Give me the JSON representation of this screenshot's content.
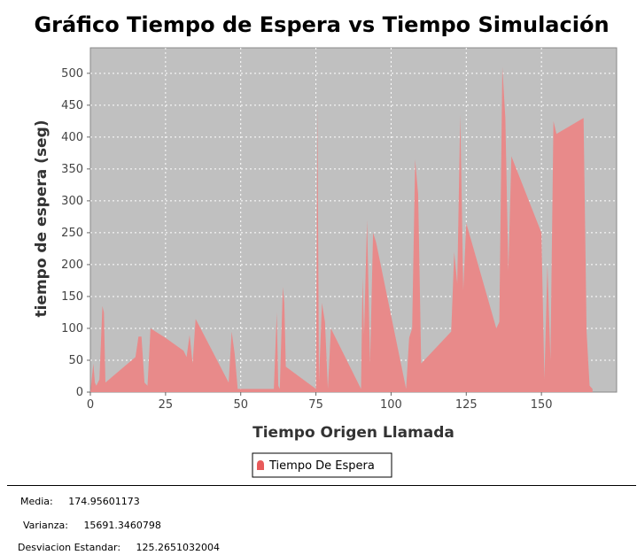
{
  "chart_data": {
    "type": "area",
    "title": "Gráfico Tiempo de Espera vs Tiempo Simulación",
    "xlabel": "Tiempo Origen Llamada",
    "ylabel": "tiempo de espera (seg)",
    "xlim": [
      0,
      175
    ],
    "ylim": [
      0,
      540
    ],
    "xticks": [
      0,
      25,
      50,
      75,
      100,
      125,
      150
    ],
    "yticks": [
      0,
      50,
      100,
      150,
      200,
      250,
      300,
      350,
      400,
      450,
      500
    ],
    "grid": true,
    "legend_position": "bottom-center",
    "series": [
      {
        "name": "Tiempo De Espera",
        "color": "#e88a8a",
        "x": [
          0,
          1,
          1.5,
          2,
          3,
          4,
          4.5,
          5,
          15,
          16,
          17,
          18,
          19,
          20,
          25,
          31,
          32,
          33,
          34,
          35,
          46,
          47,
          48,
          49,
          50,
          61,
          62,
          62.5,
          63,
          64,
          64.5,
          65,
          75,
          75.5,
          76,
          77,
          78,
          79,
          80,
          90,
          90.5,
          91,
          92,
          93,
          94,
          95,
          105,
          106,
          107,
          108,
          109,
          110,
          120,
          121,
          122,
          123,
          124,
          125,
          135,
          136,
          137,
          138,
          139,
          140,
          150,
          151,
          152,
          153,
          154,
          155,
          164,
          165,
          166,
          167
        ],
        "values": [
          0,
          45,
          15,
          10,
          20,
          135,
          125,
          15,
          55,
          87,
          87,
          15,
          10,
          100,
          85,
          65,
          55,
          90,
          45,
          115,
          15,
          95,
          60,
          5,
          5,
          5,
          125,
          10,
          5,
          165,
          140,
          40,
          5,
          450,
          15,
          140,
          110,
          5,
          100,
          5,
          180,
          90,
          270,
          45,
          250,
          235,
          5,
          85,
          100,
          365,
          310,
          45,
          95,
          220,
          170,
          435,
          160,
          265,
          100,
          110,
          510,
          430,
          190,
          370,
          250,
          20,
          200,
          50,
          425,
          405,
          430,
          95,
          10,
          5
        ]
      }
    ]
  },
  "stats": {
    "media_label": "Media:",
    "media_value": "174.95601173",
    "varianza_label": "Varianza:",
    "varianza_value": "15691.3460798",
    "desv_label": "Desviacion Estandar:",
    "desv_value": "125.2651032004"
  }
}
